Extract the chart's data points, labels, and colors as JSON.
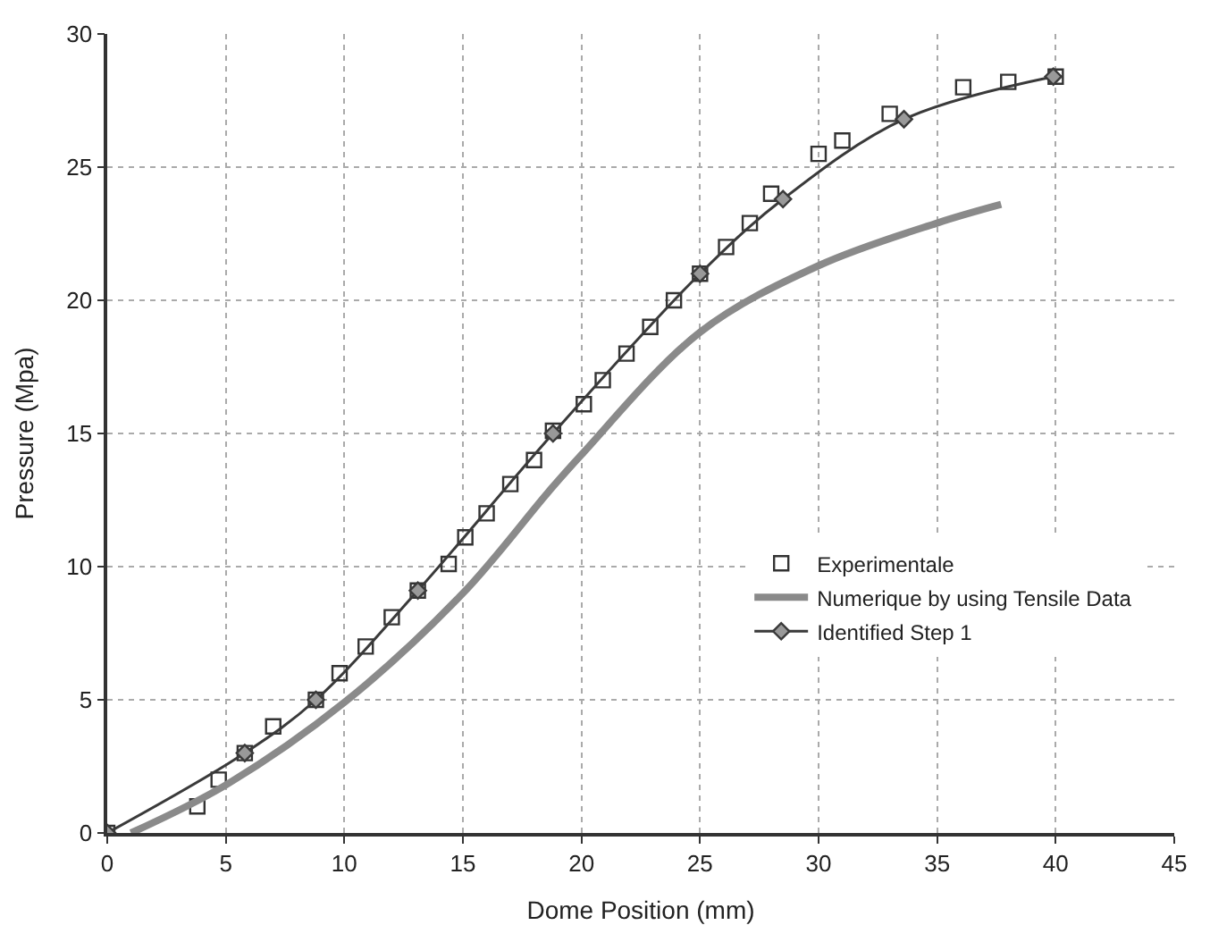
{
  "chart_data": {
    "type": "line",
    "xlabel": "Dome Position (mm)",
    "ylabel": "Pressure (Mpa)",
    "xlim": [
      0,
      45
    ],
    "xticks": [
      0,
      5,
      10,
      15,
      20,
      25,
      30,
      35,
      40,
      45
    ],
    "ylim": [
      0,
      30
    ],
    "yticks": [
      0,
      5,
      10,
      15,
      20,
      25,
      30
    ],
    "grid": true,
    "legend": "bottom right",
    "series": [
      {
        "name": "Experimentale",
        "type": "scatter",
        "marker": "square",
        "color": "#333333",
        "x": [
          0,
          3.8,
          4.7,
          5.8,
          7.0,
          8.8,
          9.8,
          10.9,
          12.0,
          13.1,
          14.4,
          15.1,
          16.0,
          17.0,
          18.0,
          18.8,
          20.1,
          20.9,
          21.9,
          22.9,
          23.9,
          25.0,
          26.1,
          27.1,
          28.0,
          30.0,
          31.0,
          33.0,
          36.1,
          38.0,
          40.0
        ],
        "values": [
          0,
          1,
          2,
          3,
          4,
          5,
          6,
          7,
          8.1,
          9.1,
          10.1,
          11.1,
          12,
          13.1,
          14,
          15.1,
          16.1,
          17,
          18,
          19,
          20,
          21,
          22,
          22.9,
          24,
          25.5,
          26,
          27,
          28,
          28.2,
          28.4
        ]
      },
      {
        "name": "Numerique by using Tensile Data",
        "marker": "none",
        "color": "#8a8a8a",
        "x": [
          1,
          5,
          10,
          15,
          18.6,
          20,
          25,
          30,
          35,
          37.7
        ],
        "values": [
          0,
          1.8,
          4.9,
          9,
          12.8,
          14.2,
          18.8,
          21.3,
          22.9,
          23.6
        ]
      },
      {
        "name": "Identified Step 1",
        "marker": "diamond",
        "color": "#3a3a3a",
        "x": [
          0,
          5.8,
          8.8,
          13.1,
          18.8,
          25.0,
          28.5,
          33.6,
          39.9
        ],
        "values": [
          0,
          3,
          5,
          9.1,
          15,
          21,
          23.8,
          26.8,
          28.4
        ]
      }
    ]
  }
}
